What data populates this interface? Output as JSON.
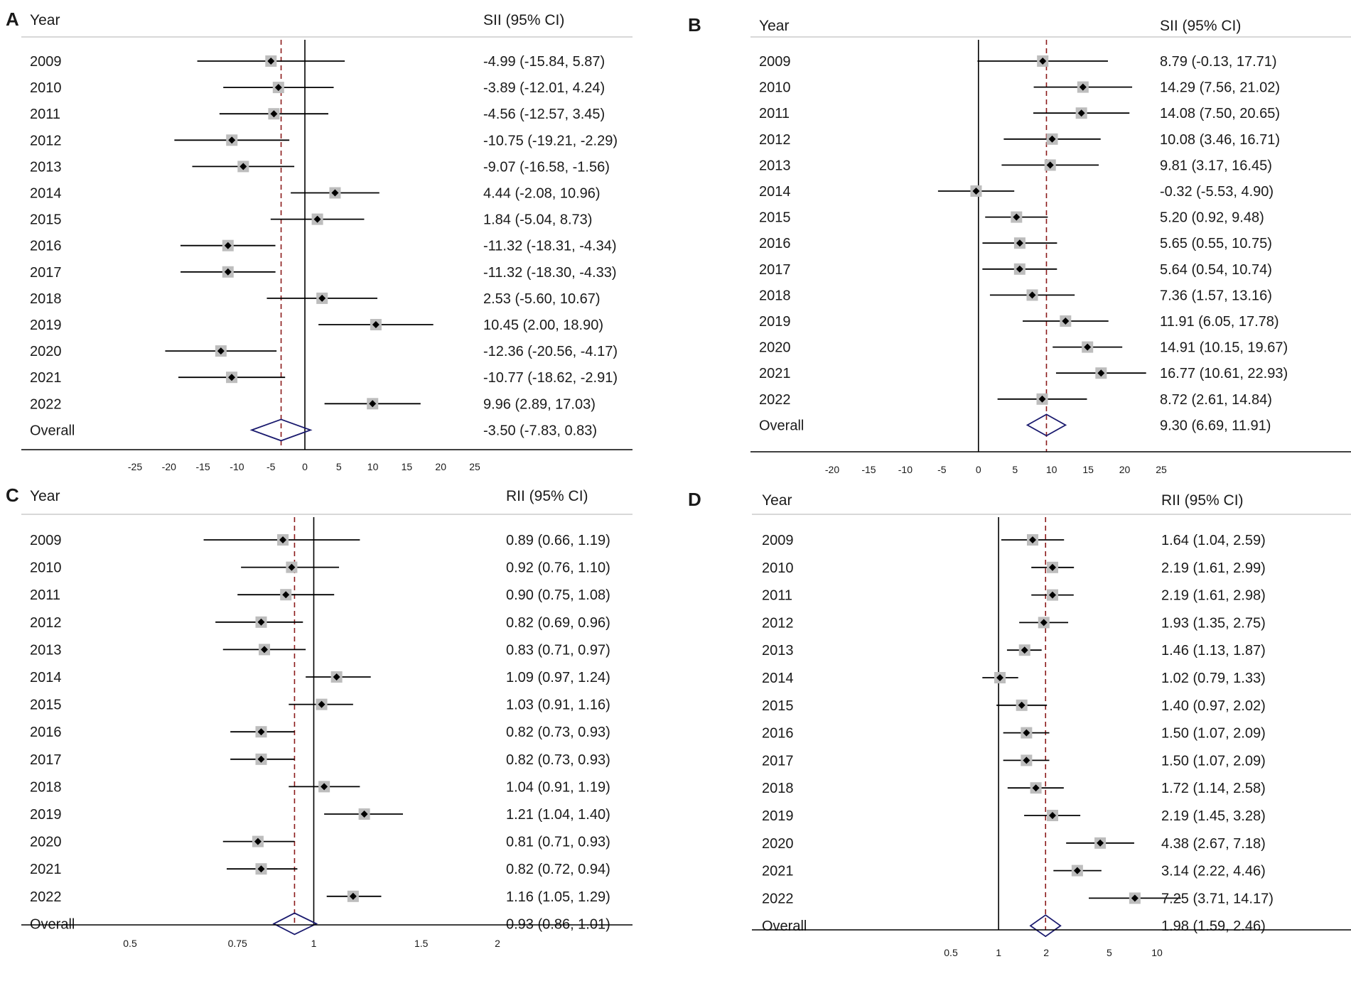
{
  "figure": {
    "style": {
      "line": "#000000",
      "ref_line": "#8b1a1a",
      "diamond": "#1a1a6e",
      "box": "#bdbdbd",
      "rule": "#cccccc"
    }
  },
  "panels": [
    {
      "letter": "A",
      "col_header": "Year",
      "stat_header": "SII (95% CI)",
      "chart_data": {
        "type": "forest",
        "scale": "linear",
        "xlim": [
          -25,
          25
        ],
        "ticks": [
          -25,
          -20,
          -15,
          -10,
          -5,
          0,
          5,
          10,
          15,
          20,
          25
        ],
        "tick_labels": [
          "-25",
          "-20",
          "-15",
          "-10",
          "-5",
          "0",
          "5",
          "10",
          "15",
          "20",
          "25"
        ],
        "null_value": 0,
        "rows": [
          {
            "year": "2009",
            "est": -4.99,
            "lo": -15.84,
            "hi": 5.87,
            "label": "-4.99 (-15.84, 5.87)"
          },
          {
            "year": "2010",
            "est": -3.89,
            "lo": -12.01,
            "hi": 4.24,
            "label": "-3.89 (-12.01, 4.24)"
          },
          {
            "year": "2011",
            "est": -4.56,
            "lo": -12.57,
            "hi": 3.45,
            "label": "-4.56 (-12.57, 3.45)"
          },
          {
            "year": "2012",
            "est": -10.75,
            "lo": -19.21,
            "hi": -2.29,
            "label": "-10.75 (-19.21, -2.29)"
          },
          {
            "year": "2013",
            "est": -9.07,
            "lo": -16.58,
            "hi": -1.56,
            "label": "-9.07 (-16.58, -1.56)"
          },
          {
            "year": "2014",
            "est": 4.44,
            "lo": -2.08,
            "hi": 10.96,
            "label": "4.44 (-2.08, 10.96)"
          },
          {
            "year": "2015",
            "est": 1.84,
            "lo": -5.04,
            "hi": 8.73,
            "label": "1.84 (-5.04, 8.73)"
          },
          {
            "year": "2016",
            "est": -11.32,
            "lo": -18.31,
            "hi": -4.34,
            "label": "-11.32 (-18.31, -4.34)"
          },
          {
            "year": "2017",
            "est": -11.32,
            "lo": -18.3,
            "hi": -4.33,
            "label": "-11.32 (-18.30, -4.33)"
          },
          {
            "year": "2018",
            "est": 2.53,
            "lo": -5.6,
            "hi": 10.67,
            "label": "2.53 (-5.60, 10.67)"
          },
          {
            "year": "2019",
            "est": 10.45,
            "lo": 2.0,
            "hi": 18.9,
            "label": "10.45 (2.00, 18.90)"
          },
          {
            "year": "2020",
            "est": -12.36,
            "lo": -20.56,
            "hi": -4.17,
            "label": "-12.36 (-20.56, -4.17)"
          },
          {
            "year": "2021",
            "est": -10.77,
            "lo": -18.62,
            "hi": -2.91,
            "label": "-10.77 (-18.62, -2.91)"
          },
          {
            "year": "2022",
            "est": 9.96,
            "lo": 2.89,
            "hi": 17.03,
            "label": "9.96 (2.89, 17.03)"
          }
        ],
        "overall": {
          "year": "Overall",
          "est": -3.5,
          "lo": -7.83,
          "hi": 0.83,
          "label": "-3.50 (-7.83, 0.83)"
        }
      }
    },
    {
      "letter": "B",
      "col_header": "Year",
      "stat_header": "SII (95% CI)",
      "chart_data": {
        "type": "forest",
        "scale": "linear",
        "xlim": [
          -20,
          25
        ],
        "ticks": [
          -20,
          -15,
          -10,
          -5,
          0,
          5,
          10,
          15,
          20,
          25
        ],
        "tick_labels": [
          "-20",
          "-15",
          "-10",
          "-5",
          "0",
          "5",
          "10",
          "15",
          "20",
          "25"
        ],
        "null_value": 0,
        "rows": [
          {
            "year": "2009",
            "est": 8.79,
            "lo": -0.13,
            "hi": 17.71,
            "label": "8.79 (-0.13, 17.71)"
          },
          {
            "year": "2010",
            "est": 14.29,
            "lo": 7.56,
            "hi": 21.02,
            "label": "14.29 (7.56, 21.02)"
          },
          {
            "year": "2011",
            "est": 14.08,
            "lo": 7.5,
            "hi": 20.65,
            "label": "14.08 (7.50, 20.65)"
          },
          {
            "year": "2012",
            "est": 10.08,
            "lo": 3.46,
            "hi": 16.71,
            "label": "10.08 (3.46, 16.71)"
          },
          {
            "year": "2013",
            "est": 9.81,
            "lo": 3.17,
            "hi": 16.45,
            "label": "9.81 (3.17, 16.45)"
          },
          {
            "year": "2014",
            "est": -0.32,
            "lo": -5.53,
            "hi": 4.9,
            "label": "-0.32 (-5.53, 4.90)"
          },
          {
            "year": "2015",
            "est": 5.2,
            "lo": 0.92,
            "hi": 9.48,
            "label": "5.20 (0.92, 9.48)"
          },
          {
            "year": "2016",
            "est": 5.65,
            "lo": 0.55,
            "hi": 10.75,
            "label": "5.65 (0.55, 10.75)"
          },
          {
            "year": "2017",
            "est": 5.64,
            "lo": 0.54,
            "hi": 10.74,
            "label": "5.64 (0.54, 10.74)"
          },
          {
            "year": "2018",
            "est": 7.36,
            "lo": 1.57,
            "hi": 13.16,
            "label": "7.36 (1.57, 13.16)"
          },
          {
            "year": "2019",
            "est": 11.91,
            "lo": 6.05,
            "hi": 17.78,
            "label": "11.91 (6.05, 17.78)"
          },
          {
            "year": "2020",
            "est": 14.91,
            "lo": 10.15,
            "hi": 19.67,
            "label": "14.91 (10.15, 19.67)"
          },
          {
            "year": "2021",
            "est": 16.77,
            "lo": 10.61,
            "hi": 22.93,
            "label": "16.77 (10.61, 22.93)"
          },
          {
            "year": "2022",
            "est": 8.72,
            "lo": 2.61,
            "hi": 14.84,
            "label": "8.72 (2.61, 14.84)"
          }
        ],
        "overall": {
          "year": "Overall",
          "est": 9.3,
          "lo": 6.69,
          "hi": 11.91,
          "label": "9.30 (6.69, 11.91)"
        }
      }
    },
    {
      "letter": "C",
      "col_header": "Year",
      "stat_header": "RII (95% CI)",
      "chart_data": {
        "type": "forest",
        "scale": "log",
        "xlim": [
          0.5,
          2
        ],
        "ticks": [
          0.5,
          0.75,
          1,
          1.5,
          2
        ],
        "tick_labels": [
          "0.5",
          "0.75",
          "1",
          "1.5",
          "2"
        ],
        "null_value": 1,
        "rows": [
          {
            "year": "2009",
            "est": 0.89,
            "lo": 0.66,
            "hi": 1.19,
            "label": "0.89 (0.66, 1.19)"
          },
          {
            "year": "2010",
            "est": 0.92,
            "lo": 0.76,
            "hi": 1.1,
            "label": "0.92 (0.76, 1.10)"
          },
          {
            "year": "2011",
            "est": 0.9,
            "lo": 0.75,
            "hi": 1.08,
            "label": "0.90 (0.75, 1.08)"
          },
          {
            "year": "2012",
            "est": 0.82,
            "lo": 0.69,
            "hi": 0.96,
            "label": "0.82 (0.69, 0.96)"
          },
          {
            "year": "2013",
            "est": 0.83,
            "lo": 0.71,
            "hi": 0.97,
            "label": "0.83 (0.71, 0.97)"
          },
          {
            "year": "2014",
            "est": 1.09,
            "lo": 0.97,
            "hi": 1.24,
            "label": "1.09 (0.97, 1.24)"
          },
          {
            "year": "2015",
            "est": 1.03,
            "lo": 0.91,
            "hi": 1.16,
            "label": "1.03 (0.91, 1.16)"
          },
          {
            "year": "2016",
            "est": 0.82,
            "lo": 0.73,
            "hi": 0.93,
            "label": "0.82 (0.73, 0.93)"
          },
          {
            "year": "2017",
            "est": 0.82,
            "lo": 0.73,
            "hi": 0.93,
            "label": "0.82 (0.73, 0.93)"
          },
          {
            "year": "2018",
            "est": 1.04,
            "lo": 0.91,
            "hi": 1.19,
            "label": "1.04 (0.91, 1.19)"
          },
          {
            "year": "2019",
            "est": 1.21,
            "lo": 1.04,
            "hi": 1.4,
            "label": "1.21 (1.04, 1.40)"
          },
          {
            "year": "2020",
            "est": 0.81,
            "lo": 0.71,
            "hi": 0.93,
            "label": "0.81 (0.71, 0.93)"
          },
          {
            "year": "2021",
            "est": 0.82,
            "lo": 0.72,
            "hi": 0.94,
            "label": "0.82 (0.72, 0.94)"
          },
          {
            "year": "2022",
            "est": 1.16,
            "lo": 1.05,
            "hi": 1.29,
            "label": "1.16 (1.05, 1.29)"
          }
        ],
        "overall": {
          "year": "Overall",
          "est": 0.93,
          "lo": 0.86,
          "hi": 1.01,
          "label": "0.93 (0.86, 1.01)"
        }
      }
    },
    {
      "letter": "D",
      "col_header": "Year",
      "stat_header": "RII (95% CI)",
      "chart_data": {
        "type": "forest",
        "scale": "log",
        "xlim": [
          0.5,
          10
        ],
        "ticks": [
          0.5,
          1,
          2,
          5,
          10
        ],
        "tick_labels": [
          "0.5",
          "1",
          "2",
          "5",
          "10"
        ],
        "null_value": 1,
        "rows": [
          {
            "year": "2009",
            "est": 1.64,
            "lo": 1.04,
            "hi": 2.59,
            "label": "1.64 (1.04, 2.59)"
          },
          {
            "year": "2010",
            "est": 2.19,
            "lo": 1.61,
            "hi": 2.99,
            "label": "2.19 (1.61, 2.99)"
          },
          {
            "year": "2011",
            "est": 2.19,
            "lo": 1.61,
            "hi": 2.98,
            "label": "2.19 (1.61, 2.98)"
          },
          {
            "year": "2012",
            "est": 1.93,
            "lo": 1.35,
            "hi": 2.75,
            "label": "1.93 (1.35, 2.75)"
          },
          {
            "year": "2013",
            "est": 1.46,
            "lo": 1.13,
            "hi": 1.87,
            "label": "1.46 (1.13, 1.87)"
          },
          {
            "year": "2014",
            "est": 1.02,
            "lo": 0.79,
            "hi": 1.33,
            "label": "1.02 (0.79, 1.33)"
          },
          {
            "year": "2015",
            "est": 1.4,
            "lo": 0.97,
            "hi": 2.02,
            "label": "1.40 (0.97, 2.02)"
          },
          {
            "year": "2016",
            "est": 1.5,
            "lo": 1.07,
            "hi": 2.09,
            "label": "1.50 (1.07, 2.09)"
          },
          {
            "year": "2017",
            "est": 1.5,
            "lo": 1.07,
            "hi": 2.09,
            "label": "1.50 (1.07, 2.09)"
          },
          {
            "year": "2018",
            "est": 1.72,
            "lo": 1.14,
            "hi": 2.58,
            "label": "1.72 (1.14, 2.58)"
          },
          {
            "year": "2019",
            "est": 2.19,
            "lo": 1.45,
            "hi": 3.28,
            "label": "2.19 (1.45, 3.28)"
          },
          {
            "year": "2020",
            "est": 4.38,
            "lo": 2.67,
            "hi": 7.18,
            "label": "4.38 (2.67, 7.18)"
          },
          {
            "year": "2021",
            "est": 3.14,
            "lo": 2.22,
            "hi": 4.46,
            "label": "3.14 (2.22, 4.46)"
          },
          {
            "year": "2022",
            "est": 7.25,
            "lo": 3.71,
            "hi": 14.17,
            "label": "7.25 (3.71, 14.17)"
          }
        ],
        "overall": {
          "year": "Overall",
          "est": 1.98,
          "lo": 1.59,
          "hi": 2.46,
          "label": "1.98 (1.59, 2.46)"
        }
      }
    }
  ]
}
